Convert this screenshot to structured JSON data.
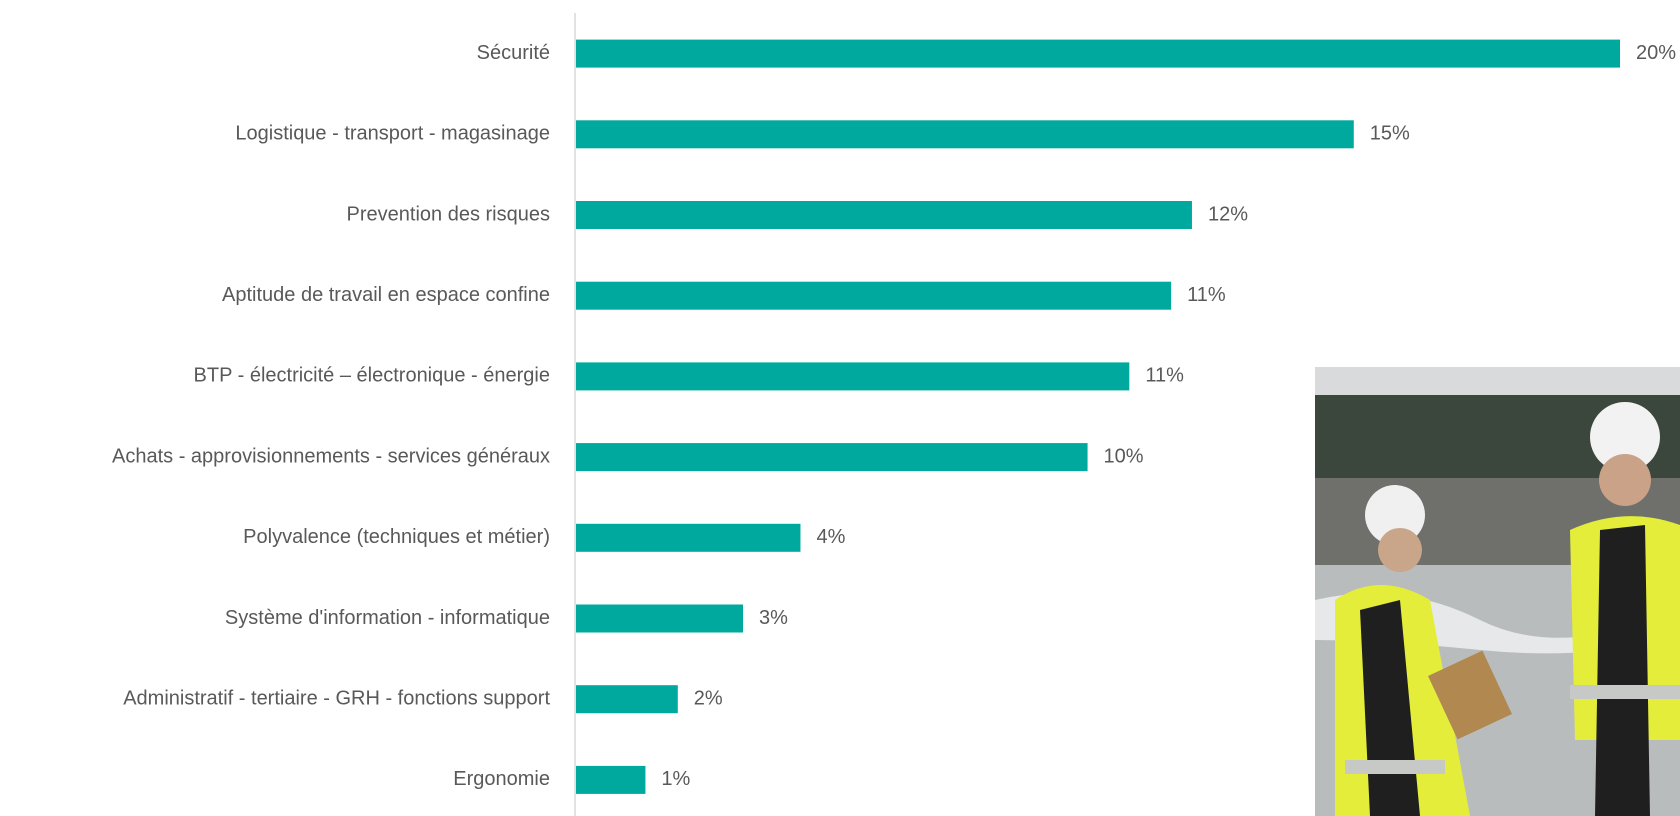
{
  "chart_data": {
    "type": "bar",
    "orientation": "horizontal",
    "categories": [
      "Sécurité",
      "Logistique - transport - magasinage",
      "Prevention des risques",
      "Aptitude de travail en espace confine",
      "BTP - électricité – électronique - énergie",
      "Achats - approvisionnements - services généraux",
      "Polyvalence (techniques et métier)",
      "Système d'information - informatique",
      "Administratif - tertiaire - GRH - fonctions  support",
      "Ergonomie"
    ],
    "values": [
      20,
      14.9,
      11.8,
      11.4,
      10.6,
      9.8,
      4.3,
      3.2,
      1.95,
      1.33
    ],
    "value_labels": [
      "20%",
      "15%",
      "12%",
      "11%",
      "11%",
      "10%",
      "4%",
      "3%",
      "2%",
      "1%"
    ],
    "color": "#00a99d"
  }
}
